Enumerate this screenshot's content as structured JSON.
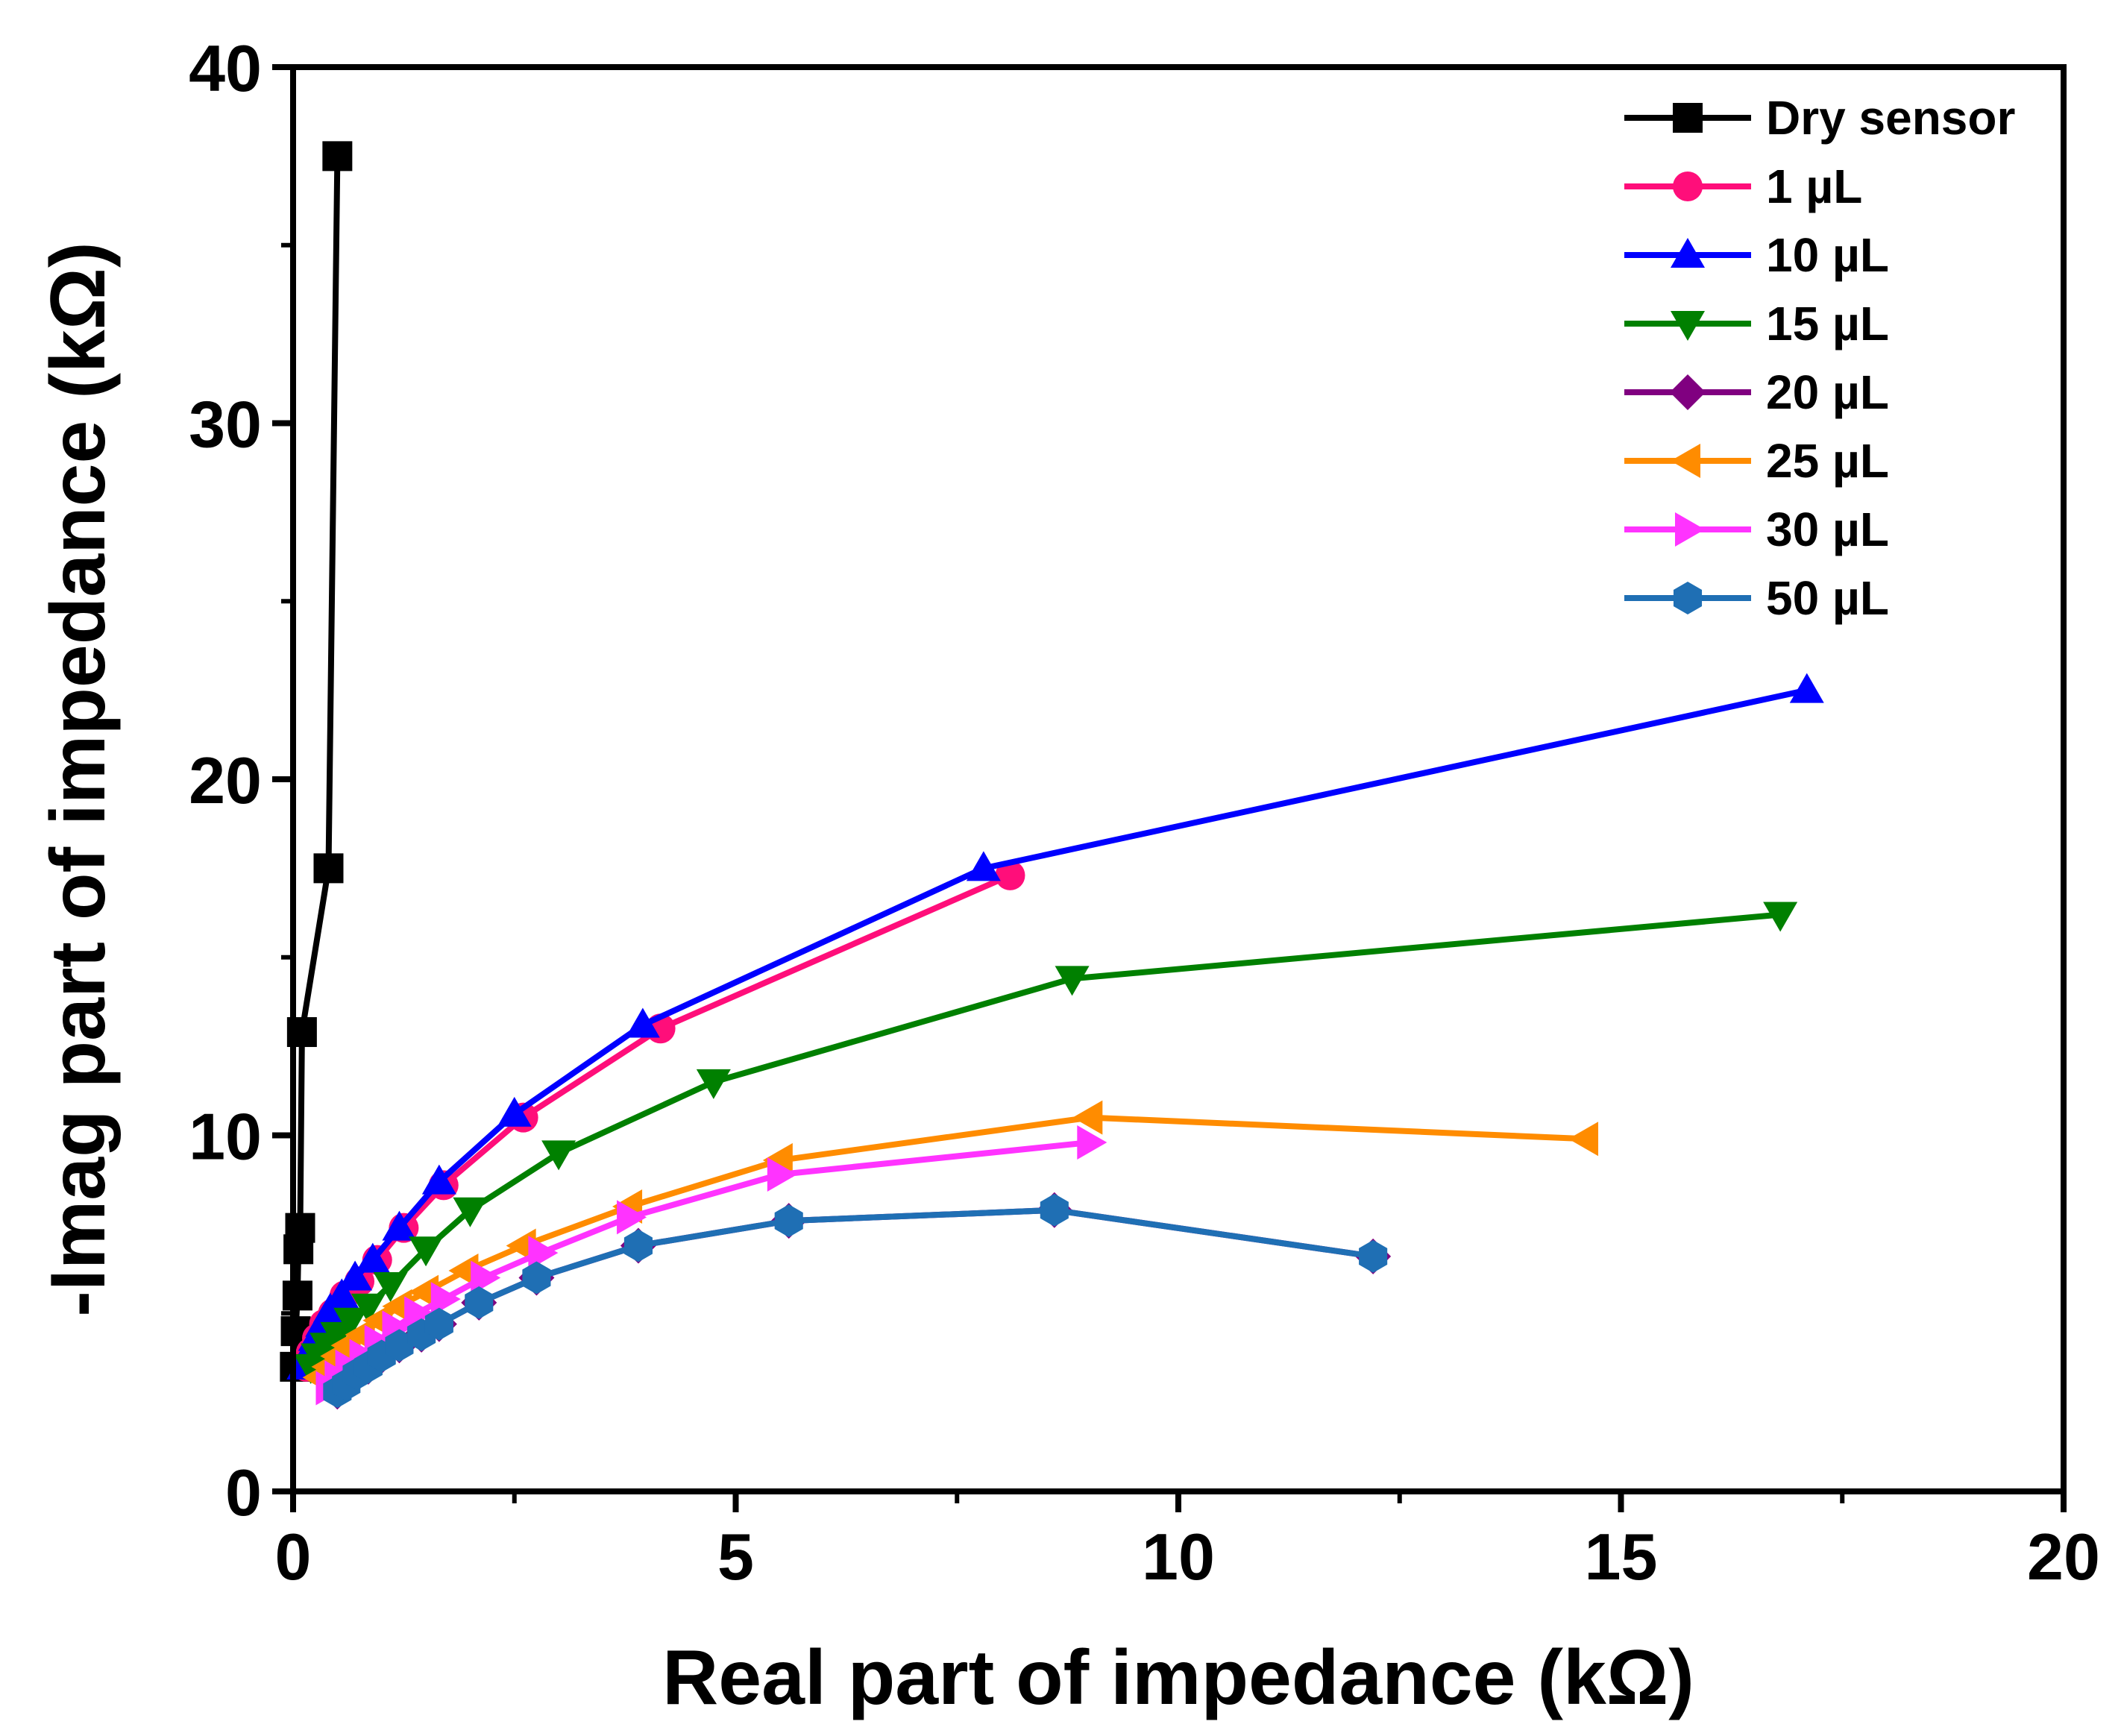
{
  "chart_data": {
    "type": "line",
    "xlabel": "Real part of impedance (kΩ)",
    "ylabel": "-Imag part of impedance (kΩ)",
    "xlim": [
      0,
      20
    ],
    "ylim": [
      0,
      40
    ],
    "xticks": [
      0,
      5,
      10,
      15,
      20
    ],
    "yticks": [
      0,
      10,
      20,
      30,
      40
    ],
    "xtick_labels": [
      "0",
      "5",
      "10",
      "15",
      "20"
    ],
    "ytick_labels": [
      "0",
      "10",
      "20",
      "30",
      "40"
    ],
    "legend_position": "top-right",
    "series": [
      {
        "name": "Dry sensor",
        "color": "#000000",
        "marker": "square",
        "x": [
          0.02,
          0.03,
          0.05,
          0.06,
          0.08,
          0.1,
          0.4,
          0.5
        ],
        "y": [
          3.5,
          4.5,
          5.5,
          6.8,
          7.4,
          12.9,
          17.5,
          37.5
        ]
      },
      {
        "name": "1 µL",
        "color": "#ff0e7a",
        "marker": "circle",
        "x": [
          0.15,
          0.2,
          0.27,
          0.35,
          0.45,
          0.58,
          0.75,
          0.95,
          1.25,
          1.7,
          2.6,
          4.15,
          8.1
        ],
        "y": [
          3.5,
          3.9,
          4.3,
          4.7,
          5.0,
          5.5,
          5.9,
          6.5,
          7.4,
          8.6,
          10.5,
          13.0,
          17.3
        ]
      },
      {
        "name": "10 µL",
        "color": "#0000ff",
        "marker": "triangle-up",
        "x": [
          0.12,
          0.18,
          0.25,
          0.33,
          0.42,
          0.55,
          0.7,
          0.9,
          1.2,
          1.65,
          2.5,
          3.95,
          7.8,
          17.1
        ],
        "y": [
          3.5,
          3.9,
          4.3,
          4.7,
          5.1,
          5.5,
          6.0,
          6.5,
          7.4,
          8.7,
          10.6,
          13.1,
          17.5,
          22.5
        ]
      },
      {
        "name": "15 µL",
        "color": "#008000",
        "marker": "triangle-down",
        "x": [
          0.2,
          0.28,
          0.38,
          0.5,
          0.65,
          0.85,
          1.1,
          1.5,
          2.0,
          3.0,
          4.75,
          8.8,
          16.8
        ],
        "y": [
          3.5,
          3.8,
          4.1,
          4.4,
          4.8,
          5.2,
          5.8,
          6.8,
          7.9,
          9.5,
          11.5,
          14.4,
          16.2
        ]
      },
      {
        "name": "20 µL",
        "color": "#800080",
        "marker": "diamond",
        "x": [
          0.5,
          0.6,
          0.72,
          0.85,
          1.0,
          1.2,
          1.45,
          1.65,
          2.1,
          2.75,
          3.9,
          5.6,
          8.6,
          12.2
        ],
        "y": [
          2.8,
          3.0,
          3.3,
          3.5,
          3.8,
          4.1,
          4.4,
          4.7,
          5.3,
          6.0,
          6.9,
          7.6,
          7.9,
          6.6
        ]
      },
      {
        "name": "25 µL",
        "color": "#ff8c00",
        "marker": "triangle-left",
        "x": [
          0.3,
          0.4,
          0.5,
          0.62,
          0.78,
          0.98,
          1.2,
          1.5,
          1.95,
          2.6,
          3.8,
          5.5,
          9.0,
          14.6
        ],
        "y": [
          3.2,
          3.5,
          3.8,
          4.1,
          4.4,
          4.8,
          5.2,
          5.6,
          6.2,
          6.9,
          8.0,
          9.3,
          10.5,
          9.9
        ]
      },
      {
        "name": "30 µL",
        "color": "#ff33ff",
        "marker": "triangle-right",
        "x": [
          0.4,
          0.5,
          0.62,
          0.78,
          0.95,
          1.15,
          1.4,
          1.7,
          2.15,
          2.8,
          3.8,
          5.5,
          9.0
        ],
        "y": [
          2.9,
          3.2,
          3.5,
          3.8,
          4.2,
          4.6,
          5.0,
          5.4,
          6.0,
          6.7,
          7.7,
          8.9,
          9.8
        ]
      },
      {
        "name": "50 µL",
        "color": "#1f6fb4",
        "marker": "hexagon",
        "x": [
          0.5,
          0.6,
          0.72,
          0.85,
          1.0,
          1.2,
          1.45,
          1.65,
          2.1,
          2.75,
          3.9,
          5.6,
          8.6,
          12.2
        ],
        "y": [
          2.8,
          3.0,
          3.3,
          3.5,
          3.8,
          4.1,
          4.4,
          4.7,
          5.3,
          6.0,
          6.9,
          7.6,
          7.9,
          6.6
        ]
      }
    ]
  }
}
